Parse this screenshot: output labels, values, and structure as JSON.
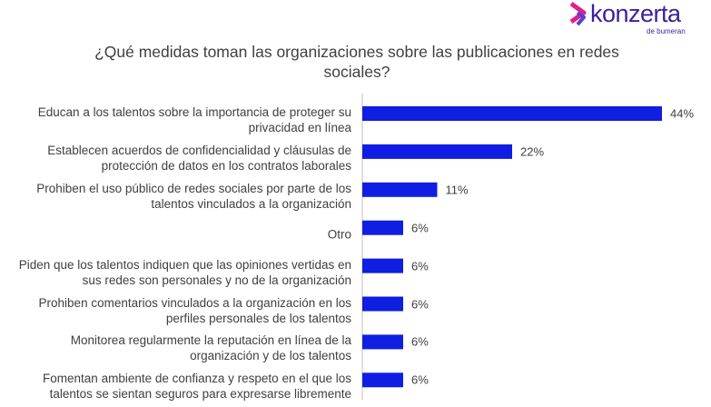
{
  "chart_data": {
    "type": "bar",
    "orientation": "horizontal",
    "title": "¿Qué medidas toman las organizaciones sobre las publicaciones en redes sociales?",
    "logo": {
      "name": "konzerta",
      "tagline": "de bumeran"
    },
    "categories": [
      "Educan a los talentos sobre la importancia de proteger su privacidad en línea",
      "Establecen acuerdos de confidencialidad y cláusulas de protección de datos en los contratos laborales",
      "Prohiben el uso público de redes sociales por parte de los talentos vinculados a la organización",
      "Otro",
      "Piden que los talentos indiquen que las opiniones vertidas en sus redes son personales y no de la organización",
      "Prohiben comentarios vinculados a la organización en los perfiles personales de los talentos",
      "Monitorea regularmente la reputación en línea de la organización y de los talentos",
      "Fomentan ambiente de confianza y respeto en el que los talentos se sientan seguros para expresarse libremente"
    ],
    "values": [
      44,
      22,
      11,
      6,
      6,
      6,
      6,
      6
    ],
    "value_labels": [
      "44%",
      "22%",
      "11%",
      "6%",
      "6%",
      "6%",
      "6%",
      "6%"
    ],
    "color": "#0f1ee0"
  }
}
